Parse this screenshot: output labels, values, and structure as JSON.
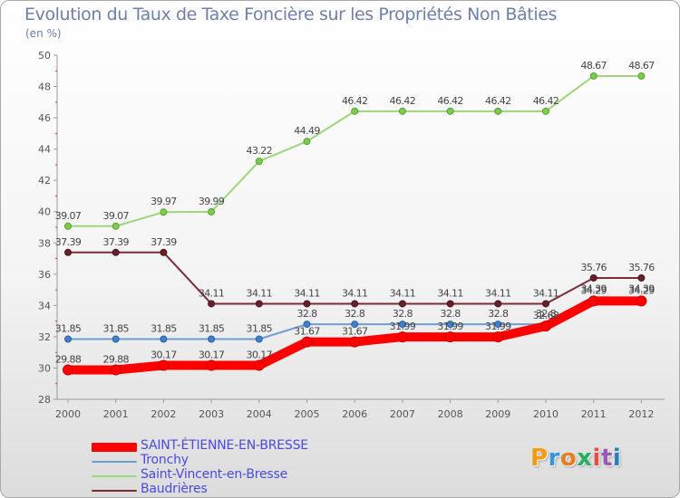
{
  "header": {
    "title": "Evolution du Taux de Taxe Foncière sur les Propriétés Non Bâties",
    "subtitle": "(en %)"
  },
  "logo": {
    "text": "Proxiti",
    "colors": [
      "#f39c12",
      "#3498db",
      "#e67e22",
      "#27ae60",
      "#e74c3c",
      "#9b59b6",
      "#2980b9"
    ]
  },
  "chart_data": {
    "type": "line",
    "x": [
      "2000",
      "2001",
      "2002",
      "2003",
      "2004",
      "2005",
      "2006",
      "2007",
      "2008",
      "2009",
      "2010",
      "2011",
      "2012"
    ],
    "ylim": [
      28,
      50
    ],
    "yticks": [
      28,
      30,
      32,
      34,
      36,
      38,
      40,
      42,
      44,
      46,
      48,
      50
    ],
    "grid": false,
    "legend_position": "bottom-left",
    "series": [
      {
        "name": "SAINT-ÉTIENNE-EN-BRESSE",
        "color": "#ff0000",
        "values": [
          29.88,
          29.88,
          30.17,
          30.17,
          30.17,
          31.67,
          31.67,
          31.99,
          31.99,
          31.99,
          32.68,
          34.29,
          34.29
        ],
        "labels": [
          "29.88",
          "29.88",
          "30.17",
          "30.17",
          "30.17",
          "31.67",
          "31.67",
          "31.99",
          "31.99",
          "31.99",
          "32.68",
          "34.29",
          "34.29"
        ]
      },
      {
        "name": "Tronchy",
        "color": "#6f9dd3",
        "values": [
          31.85,
          31.85,
          31.85,
          31.85,
          31.85,
          32.8,
          32.8,
          32.8,
          32.8,
          32.8,
          32.8,
          34.39,
          34.39
        ],
        "labels": [
          "31.85",
          "31.85",
          "31.85",
          "31.85",
          "31.85",
          "32.8",
          "32.8",
          "32.8",
          "32.8",
          "32.8",
          "32.8",
          "34.39",
          "34.39"
        ]
      },
      {
        "name": "Saint-Vincent-en-Bresse",
        "color": "#9ed67a",
        "values": [
          39.07,
          39.07,
          39.97,
          39.99,
          43.22,
          44.49,
          46.42,
          46.42,
          46.42,
          46.42,
          46.42,
          48.67,
          48.67
        ],
        "labels": [
          "39.07",
          "39.07",
          "39.97",
          "39.99",
          "43.22",
          "44.49",
          "46.42",
          "46.42",
          "46.42",
          "46.42",
          "46.42",
          "48.67",
          "48.67"
        ]
      },
      {
        "name": "Baudrières",
        "color": "#7a2d35",
        "values": [
          37.39,
          37.39,
          37.39,
          34.11,
          34.11,
          34.11,
          34.11,
          34.11,
          34.11,
          34.11,
          34.11,
          35.76,
          35.76
        ],
        "labels": [
          "37.39",
          "37.39",
          "37.39",
          "34.11",
          "34.11",
          "34.11",
          "34.11",
          "34.11",
          "34.11",
          "34.11",
          "34.11",
          "35.76",
          "35.76"
        ]
      }
    ]
  }
}
